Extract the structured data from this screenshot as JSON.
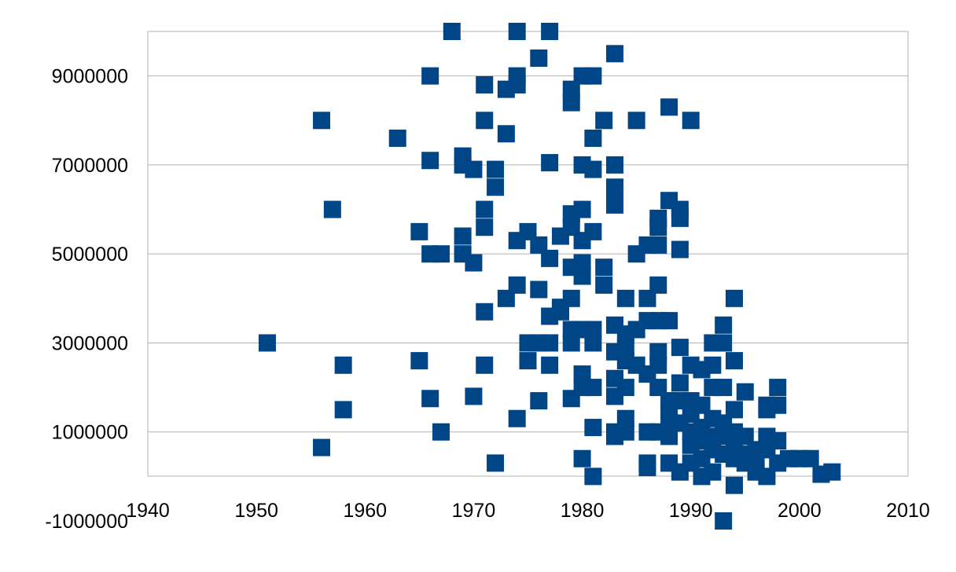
{
  "chart_data": {
    "type": "scatter",
    "title": "",
    "xlabel": "",
    "ylabel": "",
    "xlim": [
      1940,
      2010
    ],
    "ylim": [
      -1000000,
      10000000
    ],
    "x_ticks": [
      1940,
      1950,
      1960,
      1970,
      1980,
      1990,
      2000,
      2010
    ],
    "x_tick_labels": [
      "1940",
      "1950",
      "1960",
      "1970",
      "1980",
      "1990",
      "2000",
      "2010"
    ],
    "y_ticks": [
      -1000000,
      1000000,
      3000000,
      5000000,
      7000000,
      9000000
    ],
    "y_tick_labels": [
      "-1000000",
      "1000000",
      "3000000",
      "5000000",
      "7000000",
      "9000000"
    ],
    "grid": true,
    "legend": "none",
    "marker": "square",
    "color": "#004586",
    "series": [
      {
        "points": [
          [
            1951,
            3000000
          ],
          [
            1956,
            8000000
          ],
          [
            1956,
            650000
          ],
          [
            1957,
            6000000
          ],
          [
            1958,
            2500000
          ],
          [
            1958,
            1500000
          ],
          [
            1963,
            7600000
          ],
          [
            1965,
            5500000
          ],
          [
            1965,
            2600000
          ],
          [
            1966,
            9000000
          ],
          [
            1966,
            7100000
          ],
          [
            1966,
            5000000
          ],
          [
            1966,
            1750000
          ],
          [
            1967,
            5000000
          ],
          [
            1967,
            1000000
          ],
          [
            1968,
            10000000
          ],
          [
            1969,
            7200000
          ],
          [
            1969,
            7000000
          ],
          [
            1969,
            5400000
          ],
          [
            1969,
            5000000
          ],
          [
            1970,
            6900000
          ],
          [
            1970,
            4800000
          ],
          [
            1970,
            1800000
          ],
          [
            1971,
            8800000
          ],
          [
            1971,
            8000000
          ],
          [
            1971,
            6000000
          ],
          [
            1971,
            5600000
          ],
          [
            1971,
            3700000
          ],
          [
            1971,
            2500000
          ],
          [
            1972,
            6900000
          ],
          [
            1972,
            6500000
          ],
          [
            1972,
            300000
          ],
          [
            1973,
            8700000
          ],
          [
            1973,
            7700000
          ],
          [
            1973,
            4000000
          ],
          [
            1974,
            10000000
          ],
          [
            1974,
            9000000
          ],
          [
            1974,
            8800000
          ],
          [
            1974,
            5300000
          ],
          [
            1974,
            4300000
          ],
          [
            1974,
            1300000
          ],
          [
            1975,
            5500000
          ],
          [
            1975,
            3000000
          ],
          [
            1975,
            2600000
          ],
          [
            1976,
            9400000
          ],
          [
            1976,
            5200000
          ],
          [
            1976,
            4200000
          ],
          [
            1976,
            3000000
          ],
          [
            1976,
            1700000
          ],
          [
            1977,
            10000000
          ],
          [
            1977,
            7050000
          ],
          [
            1977,
            4900000
          ],
          [
            1977,
            3600000
          ],
          [
            1977,
            3000000
          ],
          [
            1977,
            2500000
          ],
          [
            1978,
            5400000
          ],
          [
            1978,
            3800000
          ],
          [
            1978,
            3700000
          ],
          [
            1979,
            8700000
          ],
          [
            1979,
            8400000
          ],
          [
            1979,
            5900000
          ],
          [
            1979,
            5600000
          ],
          [
            1979,
            4700000
          ],
          [
            1979,
            4000000
          ],
          [
            1979,
            3300000
          ],
          [
            1979,
            3000000
          ],
          [
            1979,
            1750000
          ],
          [
            1980,
            9000000
          ],
          [
            1980,
            7000000
          ],
          [
            1980,
            6000000
          ],
          [
            1980,
            5300000
          ],
          [
            1980,
            4800000
          ],
          [
            1980,
            4500000
          ],
          [
            1980,
            3300000
          ],
          [
            1980,
            2300000
          ],
          [
            1980,
            2000000
          ],
          [
            1980,
            400000
          ],
          [
            1981,
            9000000
          ],
          [
            1981,
            7600000
          ],
          [
            1981,
            6900000
          ],
          [
            1981,
            5500000
          ],
          [
            1981,
            3300000
          ],
          [
            1981,
            3000000
          ],
          [
            1981,
            2000000
          ],
          [
            1981,
            1100000
          ],
          [
            1981,
            0
          ],
          [
            1982,
            8000000
          ],
          [
            1982,
            4700000
          ],
          [
            1982,
            4300000
          ],
          [
            1983,
            9500000
          ],
          [
            1983,
            7000000
          ],
          [
            1983,
            6500000
          ],
          [
            1983,
            6300000
          ],
          [
            1983,
            6100000
          ],
          [
            1983,
            3400000
          ],
          [
            1983,
            2800000
          ],
          [
            1983,
            2200000
          ],
          [
            1983,
            1800000
          ],
          [
            1983,
            1000000
          ],
          [
            1983,
            900000
          ],
          [
            1984,
            4000000
          ],
          [
            1984,
            3200000
          ],
          [
            1984,
            2900000
          ],
          [
            1984,
            2600000
          ],
          [
            1984,
            2000000
          ],
          [
            1984,
            1300000
          ],
          [
            1984,
            1000000
          ],
          [
            1985,
            8000000
          ],
          [
            1985,
            5000000
          ],
          [
            1985,
            3300000
          ],
          [
            1985,
            2500000
          ],
          [
            1986,
            5200000
          ],
          [
            1986,
            4000000
          ],
          [
            1986,
            3500000
          ],
          [
            1986,
            2300000
          ],
          [
            1986,
            1000000
          ],
          [
            1986,
            300000
          ],
          [
            1986,
            200000
          ],
          [
            1987,
            5800000
          ],
          [
            1987,
            5600000
          ],
          [
            1987,
            5200000
          ],
          [
            1987,
            4300000
          ],
          [
            1987,
            3500000
          ],
          [
            1987,
            2800000
          ],
          [
            1987,
            2500000
          ],
          [
            1987,
            2000000
          ],
          [
            1987,
            1000000
          ],
          [
            1988,
            8300000
          ],
          [
            1988,
            6200000
          ],
          [
            1988,
            3500000
          ],
          [
            1988,
            1700000
          ],
          [
            1988,
            1500000
          ],
          [
            1988,
            1200000
          ],
          [
            1988,
            900000
          ],
          [
            1988,
            300000
          ],
          [
            1989,
            6000000
          ],
          [
            1989,
            5800000
          ],
          [
            1989,
            5100000
          ],
          [
            1989,
            2900000
          ],
          [
            1989,
            2100000
          ],
          [
            1989,
            1700000
          ],
          [
            1989,
            1200000
          ],
          [
            1989,
            100000
          ],
          [
            1990,
            8000000
          ],
          [
            1990,
            2500000
          ],
          [
            1990,
            1700000
          ],
          [
            1990,
            1400000
          ],
          [
            1990,
            1000000
          ],
          [
            1990,
            700000
          ],
          [
            1990,
            300000
          ],
          [
            1991,
            2400000
          ],
          [
            1991,
            1600000
          ],
          [
            1991,
            1100000
          ],
          [
            1991,
            800000
          ],
          [
            1991,
            400000
          ],
          [
            1991,
            0
          ],
          [
            1992,
            3000000
          ],
          [
            1992,
            2500000
          ],
          [
            1992,
            2000000
          ],
          [
            1992,
            1300000
          ],
          [
            1992,
            900000
          ],
          [
            1992,
            600000
          ],
          [
            1992,
            100000
          ],
          [
            1993,
            3400000
          ],
          [
            1993,
            3000000
          ],
          [
            1993,
            2000000
          ],
          [
            1993,
            1200000
          ],
          [
            1993,
            900000
          ],
          [
            1993,
            500000
          ],
          [
            1993,
            -1000000
          ],
          [
            1994,
            4000000
          ],
          [
            1994,
            2600000
          ],
          [
            1994,
            1500000
          ],
          [
            1994,
            1000000
          ],
          [
            1994,
            700000
          ],
          [
            1994,
            400000
          ],
          [
            1994,
            -200000
          ],
          [
            1995,
            1900000
          ],
          [
            1995,
            900000
          ],
          [
            1995,
            500000
          ],
          [
            1995,
            300000
          ],
          [
            1996,
            600000
          ],
          [
            1996,
            300000
          ],
          [
            1996,
            100000
          ],
          [
            1997,
            1600000
          ],
          [
            1997,
            1500000
          ],
          [
            1997,
            900000
          ],
          [
            1997,
            600000
          ],
          [
            1997,
            0
          ],
          [
            1998,
            2000000
          ],
          [
            1998,
            1600000
          ],
          [
            1998,
            800000
          ],
          [
            1998,
            300000
          ],
          [
            1999,
            400000
          ],
          [
            2000,
            400000
          ],
          [
            2001,
            400000
          ],
          [
            2002,
            50000
          ],
          [
            2003,
            100000
          ]
        ]
      }
    ]
  }
}
